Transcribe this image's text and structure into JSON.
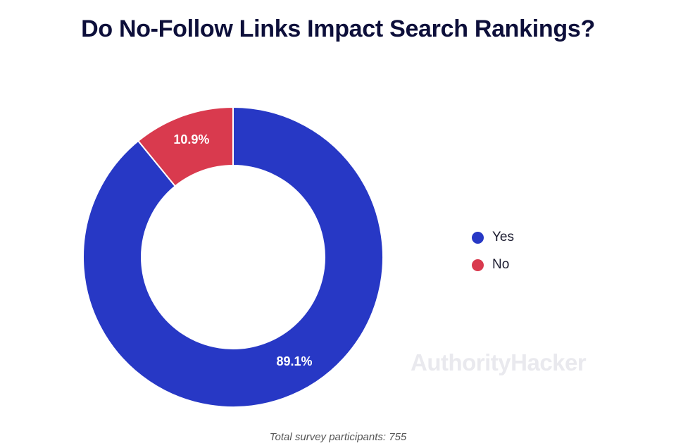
{
  "title": "Do No-Follow Links Impact Search Rankings?",
  "chart_data": {
    "type": "pie",
    "variant": "donut",
    "categories": [
      "Yes",
      "No"
    ],
    "values": [
      89.1,
      10.9
    ],
    "labels": [
      "89.1%",
      "10.9%"
    ],
    "colors": [
      "#2738c5",
      "#d93a4e"
    ],
    "legend_position": "right"
  },
  "legend": {
    "items": [
      {
        "label": "Yes",
        "color": "#2738c5"
      },
      {
        "label": "No",
        "color": "#d93a4e"
      }
    ]
  },
  "watermark": "AuthorityHacker",
  "footnote": "Total survey participants: 755"
}
